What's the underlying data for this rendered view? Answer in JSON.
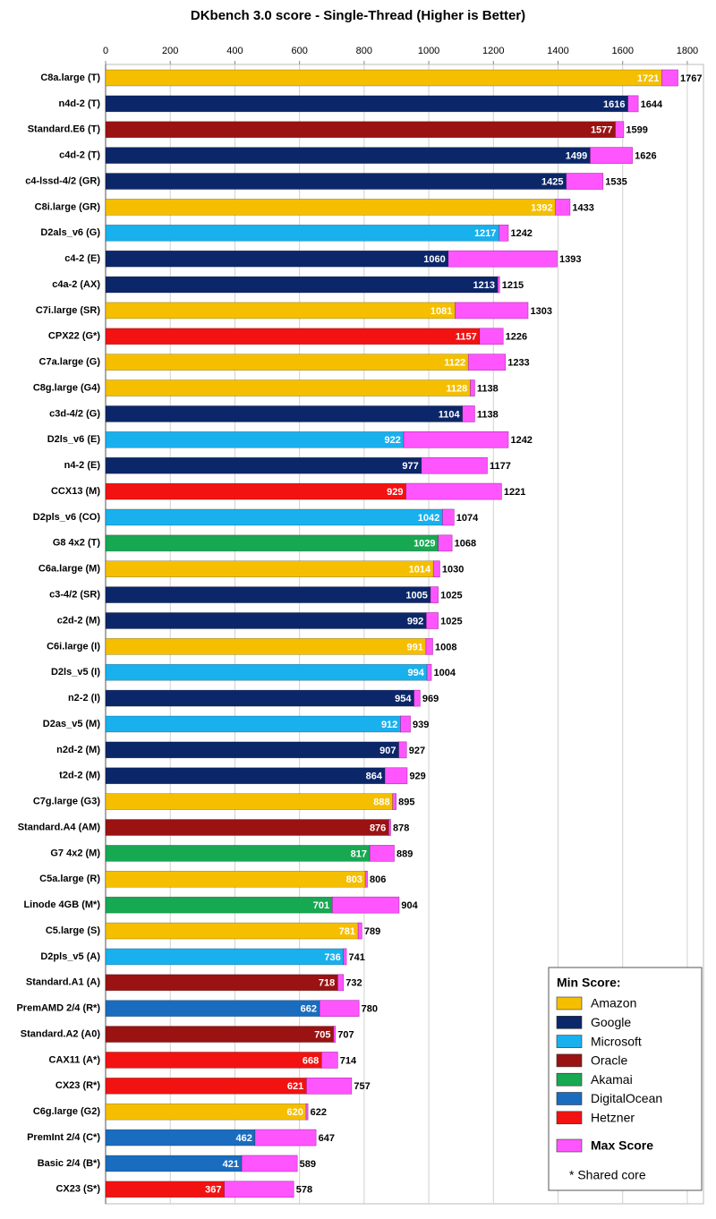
{
  "chart_data": {
    "type": "bar",
    "title": "DKbench 3.0 score - Single-Thread (Higher is Better)",
    "categories": [
      "C8a.large (T)",
      "n4d-2 (T)",
      "Standard.E6 (T)",
      "c4d-2 (T)",
      "c4-lssd-4/2 (GR)",
      "C8i.large (GR)",
      "D2als_v6 (G)",
      "c4-2 (E)",
      "c4a-2 (AX)",
      "C7i.large (SR)",
      "CPX22 (G*)",
      "C7a.large (G)",
      "C8g.large (G4)",
      "c3d-4/2 (G)",
      "D2ls_v6 (E)",
      "n4-2 (E)",
      "CCX13 (M)",
      "D2pls_v6 (CO)",
      "G8 4x2 (T)",
      "C6a.large (M)",
      "c3-4/2 (SR)",
      "c2d-2 (M)",
      "C6i.large (I)",
      "D2ls_v5 (I)",
      "n2-2 (I)",
      "D2as_v5 (M)",
      "n2d-2 (M)",
      "t2d-2 (M)",
      "C7g.large (G3)",
      "Standard.A4 (AM)",
      "G7 4x2 (M)",
      "C5a.large (R)",
      "Linode 4GB (M*)",
      "C5.large (S)",
      "D2pls_v5 (A)",
      "Standard.A1 (A)",
      "PremAMD 2/4 (R*)",
      "Standard.A2 (A0)",
      "CAX11 (A*)",
      "CX23 (R*)",
      "C6g.large (G2)",
      "PremInt 2/4 (C*)",
      "Basic 2/4 (B*)",
      "CX23 (S*)"
    ],
    "series": [
      {
        "name": "Min Score:",
        "providers": [
          "Amazon",
          "Google",
          "Oracle",
          "Google",
          "Google",
          "Amazon",
          "Microsoft",
          "Google",
          "Google",
          "Amazon",
          "Hetzner",
          "Amazon",
          "Amazon",
          "Google",
          "Microsoft",
          "Google",
          "Hetzner",
          "Microsoft",
          "Akamai",
          "Amazon",
          "Google",
          "Google",
          "Amazon",
          "Microsoft",
          "Google",
          "Microsoft",
          "Google",
          "Google",
          "Amazon",
          "Oracle",
          "Akamai",
          "Amazon",
          "Akamai",
          "Amazon",
          "Microsoft",
          "Oracle",
          "DigitalOcean",
          "Oracle",
          "Hetzner",
          "Hetzner",
          "Amazon",
          "DigitalOcean",
          "DigitalOcean",
          "Hetzner"
        ],
        "values": [
          1721,
          1616,
          1577,
          1499,
          1425,
          1392,
          1217,
          1060,
          1213,
          1081,
          1157,
          1122,
          1128,
          1104,
          922,
          977,
          929,
          1042,
          1029,
          1014,
          1005,
          992,
          991,
          994,
          954,
          912,
          907,
          864,
          888,
          876,
          817,
          803,
          701,
          781,
          736,
          718,
          662,
          705,
          668,
          621,
          620,
          462,
          421,
          367
        ]
      },
      {
        "name": "Max Score",
        "color": "#ff55ff",
        "values": [
          1767,
          1644,
          1599,
          1626,
          1535,
          1433,
          1242,
          1393,
          1215,
          1303,
          1226,
          1233,
          1138,
          1138,
          1242,
          1177,
          1221,
          1074,
          1068,
          1030,
          1025,
          1025,
          1008,
          1004,
          969,
          939,
          927,
          929,
          895,
          878,
          889,
          806,
          904,
          789,
          741,
          732,
          780,
          707,
          714,
          757,
          622,
          647,
          589,
          578
        ]
      }
    ],
    "legend": {
      "items": [
        {
          "name": "Amazon",
          "color": "#f5bf00"
        },
        {
          "name": "Google",
          "color": "#0c2769"
        },
        {
          "name": "Microsoft",
          "color": "#19b0ee"
        },
        {
          "name": "Oracle",
          "color": "#9a1212"
        },
        {
          "name": "Akamai",
          "color": "#17a852"
        },
        {
          "name": "DigitalOcean",
          "color": "#1a6cbf"
        },
        {
          "name": "Hetzner",
          "color": "#f21212"
        }
      ],
      "note": "* Shared core"
    },
    "xlim": [
      0,
      1850
    ],
    "xticks": [
      0,
      200,
      400,
      600,
      800,
      1000,
      1200,
      1400,
      1600,
      1800
    ],
    "grid": true
  }
}
